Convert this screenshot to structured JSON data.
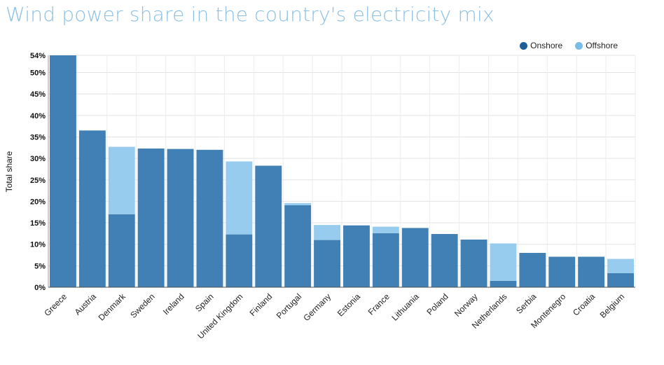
{
  "title": "Wind power share in the country's electricity mix",
  "colors": {
    "onshore": "#4080b4",
    "offshore": "#98ccef",
    "legend_onshore": "#1f5f99",
    "legend_offshore": "#7abce8"
  },
  "chart_data": {
    "type": "bar",
    "stacked": true,
    "ylabel": "Total share",
    "ylim": [
      0,
      54
    ],
    "yticks": [
      0,
      5,
      10,
      15,
      20,
      25,
      30,
      35,
      40,
      45,
      50,
      54
    ],
    "ytick_labels": [
      "0%",
      "5%",
      "10%",
      "15%",
      "20%",
      "25%",
      "30%",
      "35%",
      "40%",
      "45%",
      "50%",
      "54%"
    ],
    "grid": true,
    "legend_position": "top-right",
    "categories": [
      "Greece",
      "Austria",
      "Denmark",
      "Sweden",
      "Ireland",
      "Spain",
      "United Kingdom",
      "Finland",
      "Portugal",
      "Germany",
      "Estonia",
      "France",
      "Lithuania",
      "Poland",
      "Norway",
      "Netherlands",
      "Serbia",
      "Montenegro",
      "Croatia",
      "Belgium"
    ],
    "series": [
      {
        "name": "Onshore",
        "values": [
          54,
          36.5,
          17,
          32.3,
          32.2,
          32,
          12.3,
          28.3,
          19.1,
          11,
          14.4,
          12.6,
          13.8,
          12.4,
          11.1,
          1.5,
          8,
          7.1,
          7.1,
          3.3
        ]
      },
      {
        "name": "Offshore",
        "values": [
          0,
          0,
          15.7,
          0,
          0,
          0,
          17,
          0,
          0.5,
          3.5,
          0,
          1.5,
          0,
          0,
          0,
          8.7,
          0,
          0,
          0,
          3.3
        ]
      }
    ]
  }
}
